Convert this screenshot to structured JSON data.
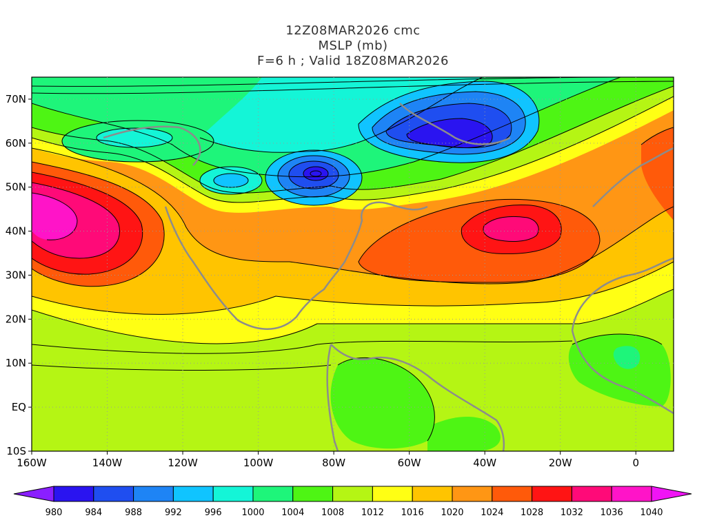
{
  "title": {
    "line1": "12Z08MAR2026 cmc",
    "line2": "MSLP (mb)",
    "line3": "F=6 h ; Valid 18Z08MAR2026"
  },
  "map": {
    "lon_range": [
      -160,
      10
    ],
    "lat_range": [
      -10,
      75
    ],
    "lat_ticks": [
      {
        "lat": 70,
        "label": "70N"
      },
      {
        "lat": 60,
        "label": "60N"
      },
      {
        "lat": 50,
        "label": "50N"
      },
      {
        "lat": 40,
        "label": "40N"
      },
      {
        "lat": 30,
        "label": "30N"
      },
      {
        "lat": 20,
        "label": "20N"
      },
      {
        "lat": 10,
        "label": "10N"
      },
      {
        "lat": 0,
        "label": "EQ"
      },
      {
        "lat": -10,
        "label": "10S"
      }
    ],
    "lon_ticks": [
      {
        "lon": -160,
        "label": "160W"
      },
      {
        "lon": -140,
        "label": "140W"
      },
      {
        "lon": -120,
        "label": "120W"
      },
      {
        "lon": -100,
        "label": "100W"
      },
      {
        "lon": -80,
        "label": "80W"
      },
      {
        "lon": -60,
        "label": "60W"
      },
      {
        "lon": -40,
        "label": "40W"
      },
      {
        "lon": -20,
        "label": "20W"
      },
      {
        "lon": 0,
        "label": "0"
      }
    ],
    "pressure_centers": [
      {
        "type": "high",
        "lon": -158,
        "lat": 43,
        "value": 1040
      },
      {
        "type": "high",
        "lon": -33,
        "lat": 41,
        "value": 1034
      },
      {
        "type": "low",
        "lon": -86,
        "lat": 53,
        "value": 984
      },
      {
        "type": "low",
        "lon": -50,
        "lat": 60,
        "value": 984
      },
      {
        "type": "low",
        "lon": -60,
        "lat": 63,
        "value": 986
      },
      {
        "type": "low",
        "lon": -106,
        "lat": 51,
        "value": 994
      },
      {
        "type": "low",
        "lon": -137,
        "lat": 59,
        "value": 1004
      }
    ]
  },
  "colorbar": {
    "levels": [
      980,
      984,
      988,
      992,
      996,
      1000,
      1004,
      1008,
      1012,
      1016,
      1020,
      1024,
      1028,
      1032,
      1036,
      1040
    ],
    "labels": [
      "980",
      "984",
      "988",
      "992",
      "996",
      "1000",
      "1004",
      "1008",
      "1012",
      "1016",
      "1020",
      "1024",
      "1028",
      "1032",
      "1036",
      "1040"
    ],
    "colors": [
      "#8a1fff",
      "#2a14f0",
      "#1f4ef0",
      "#1e84f5",
      "#10c4ff",
      "#14f5d7",
      "#1ef57a",
      "#4ef514",
      "#b5f514",
      "#ffff14",
      "#ffc400",
      "#ff9614",
      "#ff5a0a",
      "#ff1414",
      "#ff0a78",
      "#ff14c8",
      "#f014f5"
    ]
  }
}
